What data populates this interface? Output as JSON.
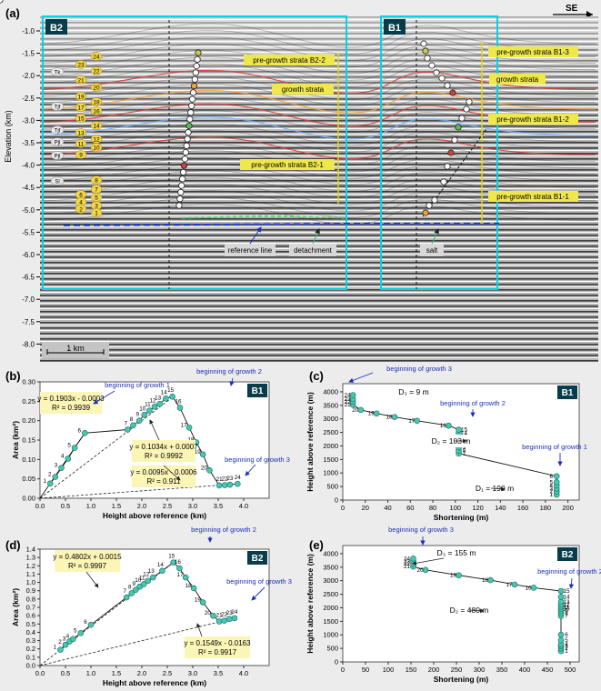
{
  "colors": {
    "panel_box": "#00d6e6",
    "marker": "#46c8b0",
    "marker_stroke": "#1a6a66",
    "label_box": "#fbf5b6",
    "blue_text": "#1c2fb8",
    "seismic_line": "#7a7a7a",
    "growth_red": "#d2423a",
    "yellow_arrow": "#e8d600"
  },
  "seismic": {
    "panel_letter": "(a)",
    "direction": "SE",
    "y_axis_label": "Elevation (km)",
    "y_ticks": [
      "-1.0",
      "-1.5",
      "-2.0",
      "-2.5",
      "-3.0",
      "-3.5",
      "-4.0",
      "-4.5",
      "-5.0",
      "-5.5",
      "-6.0",
      "-6.5",
      "-7.0",
      "-7.5",
      "-8.0"
    ],
    "scale_bar": "1 km",
    "box_labels": [
      "B2",
      "B1"
    ],
    "strata_labels": {
      "b2_pre2": "pre-growth strata B2-2",
      "b2_growth": "growth strata",
      "b2_pre1": "pre-growth strata B2-1",
      "b1_pre3": "pre-growth strata B1-3",
      "b1_growth": "growth strata",
      "b1_pre2": "pre-growth strata B1-2",
      "b1_pre1": "pre-growth strata B1-1"
    },
    "callouts": {
      "reference_line": "reference line",
      "detachment": "detachment",
      "salt": "salt"
    },
    "horizon_labels": [
      "Tk",
      "Tjf",
      "Tjf",
      "Pjl",
      "Pjl",
      "Sl"
    ],
    "horizon_numbers": [
      "24",
      "23",
      "22",
      "21",
      "20",
      "19",
      "18",
      "17",
      "16",
      "15",
      "14",
      "13",
      "12",
      "11",
      "10",
      "9",
      "8",
      "7",
      "6",
      "5",
      "4",
      "3",
      "2",
      "1"
    ]
  },
  "chart_data": [
    {
      "panel": "(b)",
      "badge": "B1",
      "type": "line",
      "xlabel": "Height above reference (km)",
      "ylabel": "Area (km²)",
      "xlim": [
        0,
        4.5
      ],
      "ylim": [
        0,
        0.3
      ],
      "x_ticks": [
        "0.0",
        "0.5",
        "1.0",
        "1.5",
        "2.0",
        "2.5",
        "3.0",
        "3.5",
        "4.0"
      ],
      "y_ticks": [
        "0.00",
        "0.05",
        "0.10",
        "0.15",
        "0.20",
        "0.25",
        "0.30"
      ],
      "points": [
        {
          "n": "1",
          "x": 0.2,
          "y": 0.038
        },
        {
          "n": "2",
          "x": 0.3,
          "y": 0.055
        },
        {
          "n": "3",
          "x": 0.42,
          "y": 0.078
        },
        {
          "n": "4",
          "x": 0.55,
          "y": 0.102
        },
        {
          "n": "5",
          "x": 0.68,
          "y": 0.13
        },
        {
          "n": "6",
          "x": 0.88,
          "y": 0.168
        },
        {
          "n": "7",
          "x": 1.72,
          "y": 0.177
        },
        {
          "n": "8",
          "x": 1.83,
          "y": 0.188
        },
        {
          "n": "9",
          "x": 1.95,
          "y": 0.2
        },
        {
          "n": "10",
          "x": 2.05,
          "y": 0.215
        },
        {
          "n": "11",
          "x": 2.15,
          "y": 0.226
        },
        {
          "n": "12",
          "x": 2.25,
          "y": 0.236
        },
        {
          "n": "13",
          "x": 2.35,
          "y": 0.243
        },
        {
          "n": "14",
          "x": 2.47,
          "y": 0.257
        },
        {
          "n": "15",
          "x": 2.6,
          "y": 0.262
        },
        {
          "n": "16",
          "x": 2.75,
          "y": 0.233
        },
        {
          "n": "17",
          "x": 2.93,
          "y": 0.182
        },
        {
          "n": "18",
          "x": 3.07,
          "y": 0.144
        },
        {
          "n": "19",
          "x": 3.2,
          "y": 0.113
        },
        {
          "n": "20",
          "x": 3.33,
          "y": 0.072
        },
        {
          "n": "21",
          "x": 3.52,
          "y": 0.033
        },
        {
          "n": "22",
          "x": 3.63,
          "y": 0.034
        },
        {
          "n": "23",
          "x": 3.73,
          "y": 0.035
        },
        {
          "n": "24",
          "x": 3.88,
          "y": 0.037
        }
      ],
      "fits": [
        {
          "eq": "y = 0.1903x - 0.0003",
          "r2": "R² = 0.9939"
        },
        {
          "eq": "y = 0.1034x + 0.0007",
          "r2": "R² = 0.9992"
        },
        {
          "eq": "y = 0.0095x - 0.0006",
          "r2": "R² = 0.911"
        }
      ],
      "annotations": [
        "beginning of growth 1",
        "beginning of growth 2",
        "beginning of growth 3"
      ]
    },
    {
      "panel": "(c)",
      "badge": "B1",
      "type": "line",
      "xlabel": "Shortening (m)",
      "ylabel": "Height above reference (m)",
      "xlim": [
        0,
        210
      ],
      "ylim": [
        0,
        4300
      ],
      "x_ticks": [
        "0",
        "20",
        "40",
        "60",
        "80",
        "100",
        "120",
        "140",
        "160",
        "180",
        "200"
      ],
      "y_ticks": [
        "0",
        "500",
        "1000",
        "1500",
        "2000",
        "2500",
        "3000",
        "3500",
        "4000"
      ],
      "points": [
        {
          "n": "1",
          "x": 190,
          "y": 200
        },
        {
          "n": "2",
          "x": 190,
          "y": 320
        },
        {
          "n": "3",
          "x": 190,
          "y": 420
        },
        {
          "n": "4",
          "x": 190,
          "y": 540
        },
        {
          "n": "5",
          "x": 190,
          "y": 660
        },
        {
          "n": "6",
          "x": 190,
          "y": 880
        },
        {
          "n": "7",
          "x": 103,
          "y": 1720
        },
        {
          "n": "8",
          "x": 103,
          "y": 1830
        },
        {
          "n": "9",
          "x": 103,
          "y": 1950
        },
        {
          "n": "10",
          "x": 103,
          "y": 2050
        },
        {
          "n": "11",
          "x": 103,
          "y": 2150
        },
        {
          "n": "12",
          "x": 103,
          "y": 2250
        },
        {
          "n": "13",
          "x": 103,
          "y": 2350
        },
        {
          "n": "14",
          "x": 103,
          "y": 2470
        },
        {
          "n": "15",
          "x": 103,
          "y": 2600
        },
        {
          "n": "16",
          "x": 94,
          "y": 2750
        },
        {
          "n": "17",
          "x": 66,
          "y": 2930
        },
        {
          "n": "18",
          "x": 46,
          "y": 3070
        },
        {
          "n": "19",
          "x": 30,
          "y": 3200
        },
        {
          "n": "20",
          "x": 16,
          "y": 3330
        },
        {
          "n": "21",
          "x": 9,
          "y": 3520
        },
        {
          "n": "22",
          "x": 9,
          "y": 3630
        },
        {
          "n": "23",
          "x": 9,
          "y": 3730
        },
        {
          "n": "24",
          "x": 9,
          "y": 3880
        }
      ],
      "labels": [
        "D₃ = 9 m",
        "D₂ = 103 m",
        "D₁ = 190 m"
      ],
      "annotations": [
        "beginning of growth 3",
        "beginning of growth 2",
        "beginning of growth 1"
      ]
    },
    {
      "panel": "(d)",
      "badge": "B2",
      "type": "line",
      "xlabel": "Height above reference (km)",
      "ylabel": "Area (km²)",
      "xlim": [
        0,
        4.5
      ],
      "ylim": [
        0,
        1.4
      ],
      "x_ticks": [
        "0.0",
        "0.5",
        "1.0",
        "1.5",
        "2.0",
        "2.5",
        "3.0",
        "3.5",
        "4.0"
      ],
      "y_ticks": [
        "0.0",
        "0.1",
        "0.2",
        "0.3",
        "0.4",
        "0.5",
        "0.6",
        "0.7",
        "0.8",
        "0.9",
        "1.0",
        "1.1",
        "1.2",
        "1.3",
        "1.4"
      ],
      "points": [
        {
          "n": "1",
          "x": 0.4,
          "y": 0.19
        },
        {
          "n": "2",
          "x": 0.5,
          "y": 0.25
        },
        {
          "n": "3",
          "x": 0.58,
          "y": 0.29
        },
        {
          "n": "4",
          "x": 0.65,
          "y": 0.32
        },
        {
          "n": "5",
          "x": 0.8,
          "y": 0.39
        },
        {
          "n": "6",
          "x": 1.0,
          "y": 0.49
        },
        {
          "n": "7",
          "x": 1.7,
          "y": 0.82
        },
        {
          "n": "8",
          "x": 1.8,
          "y": 0.87
        },
        {
          "n": "9",
          "x": 1.88,
          "y": 0.91
        },
        {
          "n": "10",
          "x": 1.96,
          "y": 0.95
        },
        {
          "n": "11",
          "x": 2.04,
          "y": 0.98
        },
        {
          "n": "12",
          "x": 2.12,
          "y": 1.02
        },
        {
          "n": "13",
          "x": 2.22,
          "y": 1.06
        },
        {
          "n": "14",
          "x": 2.4,
          "y": 1.14
        },
        {
          "n": "15",
          "x": 2.62,
          "y": 1.24
        },
        {
          "n": "16",
          "x": 2.74,
          "y": 1.17
        },
        {
          "n": "17",
          "x": 2.86,
          "y": 1.06
        },
        {
          "n": "18",
          "x": 3.02,
          "y": 0.93
        },
        {
          "n": "19",
          "x": 3.2,
          "y": 0.76
        },
        {
          "n": "20",
          "x": 3.4,
          "y": 0.6
        },
        {
          "n": "21",
          "x": 3.52,
          "y": 0.53
        },
        {
          "n": "22",
          "x": 3.62,
          "y": 0.54
        },
        {
          "n": "23",
          "x": 3.72,
          "y": 0.56
        },
        {
          "n": "24",
          "x": 3.82,
          "y": 0.57
        }
      ],
      "fits": [
        {
          "eq": "y = 0.4802x + 0.0015",
          "r2": "R² = 0.9997"
        },
        {
          "eq": "y = 0.1549x - 0.0163",
          "r2": "R² = 0.9917"
        }
      ],
      "annotations": [
        "beginning of growth 2",
        "beginning of growth 3"
      ]
    },
    {
      "panel": "(e)",
      "badge": "B2",
      "type": "line",
      "xlabel": "Shortening (m)",
      "ylabel": "Height above reference (m)",
      "xlim": [
        0,
        520
      ],
      "ylim": [
        0,
        4300
      ],
      "x_ticks": [
        "0",
        "50",
        "100",
        "150",
        "200",
        "250",
        "300",
        "350",
        "400",
        "450",
        "500"
      ],
      "y_ticks": [
        "0",
        "500",
        "1000",
        "1500",
        "2000",
        "2500",
        "3000",
        "3500",
        "4000"
      ],
      "points": [
        {
          "n": "1",
          "x": 480,
          "y": 400
        },
        {
          "n": "2",
          "x": 480,
          "y": 500
        },
        {
          "n": "3",
          "x": 480,
          "y": 580
        },
        {
          "n": "4",
          "x": 480,
          "y": 650
        },
        {
          "n": "5",
          "x": 480,
          "y": 800
        },
        {
          "n": "6",
          "x": 480,
          "y": 1000
        },
        {
          "n": "7",
          "x": 480,
          "y": 1700
        },
        {
          "n": "8",
          "x": 480,
          "y": 1800
        },
        {
          "n": "9",
          "x": 480,
          "y": 1880
        },
        {
          "n": "10",
          "x": 480,
          "y": 1960
        },
        {
          "n": "11",
          "x": 480,
          "y": 2040
        },
        {
          "n": "12",
          "x": 480,
          "y": 2120
        },
        {
          "n": "13",
          "x": 480,
          "y": 2220
        },
        {
          "n": "14",
          "x": 480,
          "y": 2400
        },
        {
          "n": "15",
          "x": 480,
          "y": 2620
        },
        {
          "n": "16",
          "x": 420,
          "y": 2740
        },
        {
          "n": "17",
          "x": 378,
          "y": 2860
        },
        {
          "n": "18",
          "x": 325,
          "y": 3020
        },
        {
          "n": "19",
          "x": 255,
          "y": 3200
        },
        {
          "n": "20",
          "x": 182,
          "y": 3400
        },
        {
          "n": "21",
          "x": 155,
          "y": 3520
        },
        {
          "n": "22",
          "x": 155,
          "y": 3620
        },
        {
          "n": "23",
          "x": 155,
          "y": 3720
        },
        {
          "n": "24",
          "x": 155,
          "y": 3820
        }
      ],
      "labels": [
        "D₃ = 155 m",
        "D₂ = 480 m"
      ],
      "annotations": [
        "beginning of growth 3",
        "beginning of growth 2"
      ]
    }
  ]
}
